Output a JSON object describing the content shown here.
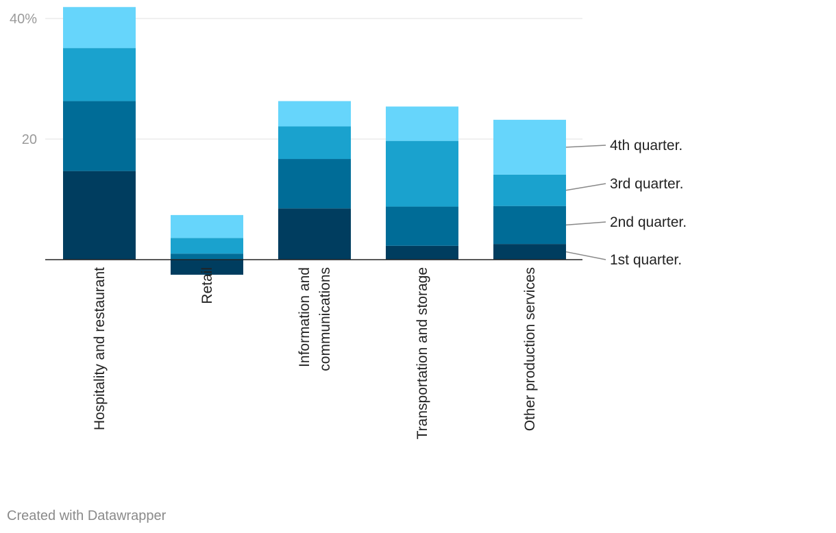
{
  "chart_data": {
    "type": "bar",
    "stacked": true,
    "categories": [
      [
        "Hospitality and restaurant"
      ],
      [
        "Retail"
      ],
      [
        "Information and",
        "communications"
      ],
      [
        "Transportation and storage"
      ],
      [
        "Other production services"
      ]
    ],
    "series": [
      {
        "name": "1st quarter.",
        "color": "#003d5f",
        "values": [
          14.7,
          -2.5,
          8.5,
          2.3,
          2.6
        ]
      },
      {
        "name": "2nd quarter.",
        "color": "#006c97",
        "values": [
          11.6,
          1.0,
          8.2,
          6.5,
          6.3
        ]
      },
      {
        "name": "3rd quarter.",
        "color": "#1aa2ce",
        "values": [
          8.8,
          2.6,
          5.4,
          10.9,
          5.2
        ]
      },
      {
        "name": "4th quarter.",
        "color": "#66d5fb",
        "values": [
          6.8,
          3.8,
          4.2,
          5.7,
          9.1
        ]
      }
    ],
    "yticks": [
      {
        "value": 20,
        "label": "20"
      },
      {
        "value": 40,
        "label": "40%"
      }
    ],
    "ylim": [
      -2.5,
      42
    ],
    "grid": true,
    "legend": "direct labels right"
  },
  "credit": "Created with Datawrapper"
}
